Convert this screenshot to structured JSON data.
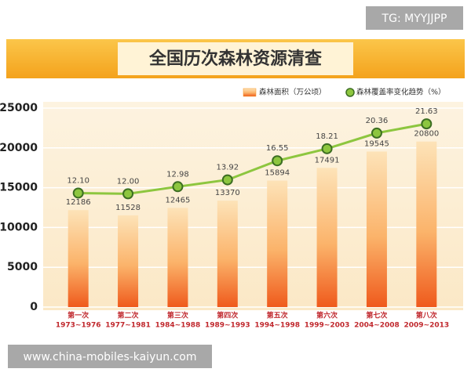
{
  "chart_data": {
    "type": "bar-line",
    "title": "全国历次森林资源清查",
    "categories": [
      "第一次",
      "第二次",
      "第三次",
      "第四次",
      "第五次",
      "第六次",
      "第七次",
      "第八次"
    ],
    "periods": [
      "1973~1976",
      "1977~1981",
      "1984~1988",
      "1989~1993",
      "1994~1998",
      "1999~2003",
      "2004~2008",
      "2009~2013"
    ],
    "series": [
      {
        "name": "森林面积（万公顷）",
        "color": "#f7941d",
        "values": [
          12186,
          11528,
          12465,
          13370,
          15894,
          17491,
          19545,
          20800
        ]
      },
      {
        "name": "森林覆盖率变化趋势（%）",
        "color": "#8dc63f",
        "axis": "y2",
        "values": [
          12.1,
          12,
          12.98,
          13.92,
          16.55,
          18.21,
          20.36,
          21.63
        ],
        "value_labels": [
          "12.10",
          "12.00",
          "12.98",
          "13.92",
          "16.55",
          "18.21",
          "20.36",
          "21.63"
        ]
      }
    ],
    "ylim": [
      0,
      25000
    ],
    "yticks": [
      0,
      5000,
      10000,
      15000,
      20000,
      25000
    ],
    "y2lim": [
      -3.6,
      23.8
    ],
    "grid": true
  },
  "overlays": {
    "top_right": "TG: MYYJJPP",
    "bottom_left": "www.china-mobiles-kaiyun.com"
  }
}
